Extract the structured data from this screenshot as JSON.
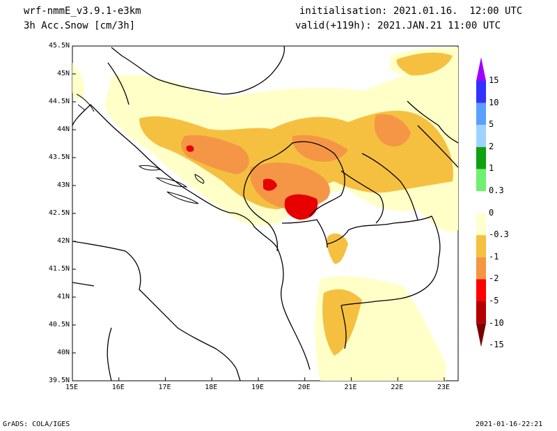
{
  "header": {
    "model": "wrf-nmmE_v3.9.1-e3km",
    "field": "3h Acc.Snow [cm/3h]",
    "init": "initialisation: 2021.01.16.  12:00 UTC",
    "valid": "valid(+119h): 2021.JAN.21 11:00 UTC"
  },
  "footer": {
    "left": "GrADS: COLA/IGES",
    "right": "2021-01-16-22:21"
  },
  "axes": {
    "lon_labels": [
      "15E",
      "16E",
      "17E",
      "18E",
      "19E",
      "20E",
      "21E",
      "22E",
      "23E"
    ],
    "lat_labels": [
      "45.5N",
      "45N",
      "44.5N",
      "44N",
      "43.5N",
      "43N",
      "42.5N",
      "42N",
      "41.5N",
      "41N",
      "40.5N",
      "40N",
      "39.5N"
    ],
    "lon_range": [
      15,
      23.3
    ],
    "lat_range": [
      39.5,
      45.5
    ]
  },
  "legend": {
    "labels": [
      "15",
      "10",
      "5",
      "2",
      "1",
      "0.3",
      "0",
      "-0.3",
      "-1",
      "-2",
      "-5",
      "-10",
      "-15"
    ],
    "colors": [
      "#a000ff",
      "#3232ff",
      "#5aa0ff",
      "#a0d2ff",
      "#10a010",
      "#70f070",
      "#ffffff",
      "#ffffd0",
      "#f5c040",
      "#f59640",
      "#ff0000",
      "#b40000",
      "#780000"
    ]
  },
  "colors": {
    "snow_light": "#ffffc8",
    "snow_mid": "#f5c040",
    "snow_heavy": "#f59646",
    "snow_max": "#e60000",
    "border": "#000000"
  }
}
